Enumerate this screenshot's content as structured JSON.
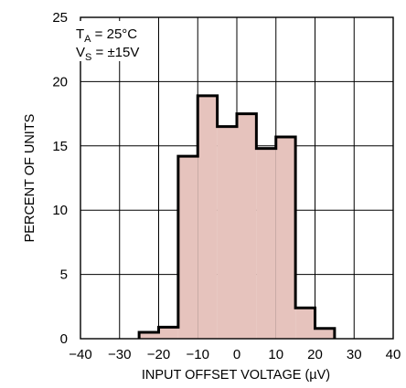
{
  "chart_data": {
    "type": "bar",
    "title": "",
    "xlabel": "INPUT OFFSET VOLTAGE (µV)",
    "ylabel": "PERCENT OF UNITS",
    "xlim": [
      -40,
      40
    ],
    "ylim": [
      0,
      25
    ],
    "x_ticks": [
      "−40",
      "−30",
      "−20",
      "−10",
      "0",
      "10",
      "20",
      "30",
      "40"
    ],
    "y_ticks": [
      "0",
      "5",
      "10",
      "15",
      "20",
      "25"
    ],
    "grid": true,
    "bins": [
      {
        "x0": -25,
        "x1": -20,
        "value": 0.5
      },
      {
        "x0": -20,
        "x1": -15,
        "value": 0.9
      },
      {
        "x0": -15,
        "x1": -10,
        "value": 14.2
      },
      {
        "x0": -10,
        "x1": -5,
        "value": 18.9
      },
      {
        "x0": -5,
        "x1": 0,
        "value": 16.5
      },
      {
        "x0": 0,
        "x1": 5,
        "value": 17.5
      },
      {
        "x0": 5,
        "x1": 10,
        "value": 14.8
      },
      {
        "x0": 10,
        "x1": 15,
        "value": 15.7
      },
      {
        "x0": 15,
        "x1": 20,
        "value": 2.4
      },
      {
        "x0": 20,
        "x1": 25,
        "value": 0.8
      }
    ],
    "annotation": {
      "line1_main": "T",
      "line1_sub": "A",
      "line1_rest": " = 25°C",
      "line2_main": "V",
      "line2_sub": "S",
      "line2_rest": " = ±15V"
    },
    "colors": {
      "bar_fill": "#e6c3bd",
      "bar_stroke": "#000000",
      "grid": "#000000"
    }
  }
}
